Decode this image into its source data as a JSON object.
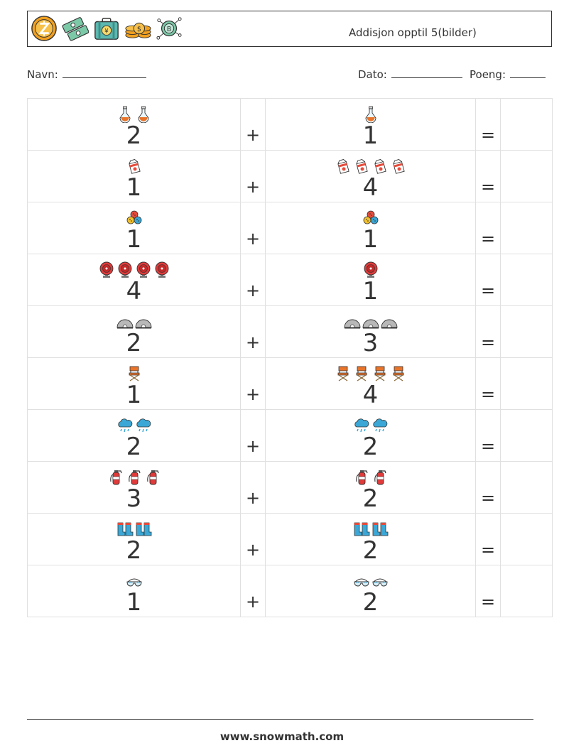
{
  "header": {
    "title": "Addisjon opptil 5(bilder)",
    "icons": [
      "zcash-coin-icon",
      "money-bills-icon",
      "yen-suitcase-icon",
      "coin-stack-icon",
      "bitcoin-network-icon"
    ]
  },
  "info": {
    "name_label": "Navn:",
    "date_label": "Dato:",
    "score_label": "Poeng:"
  },
  "operators": {
    "plus": "+",
    "equals": "="
  },
  "problems": [
    {
      "left": {
        "count": "2",
        "icon": "flask-icon"
      },
      "right": {
        "count": "1",
        "icon": "flask-icon"
      }
    },
    {
      "left": {
        "count": "1",
        "icon": "milk-carton-icon"
      },
      "right": {
        "count": "4",
        "icon": "milk-carton-icon"
      }
    },
    {
      "left": {
        "count": "1",
        "icon": "buttons-icon"
      },
      "right": {
        "count": "1",
        "icon": "buttons-icon"
      }
    },
    {
      "left": {
        "count": "4",
        "icon": "alarm-bell-icon"
      },
      "right": {
        "count": "1",
        "icon": "alarm-bell-icon"
      }
    },
    {
      "left": {
        "count": "2",
        "icon": "tent-icon"
      },
      "right": {
        "count": "3",
        "icon": "tent-icon"
      }
    },
    {
      "left": {
        "count": "1",
        "icon": "director-chair-icon"
      },
      "right": {
        "count": "4",
        "icon": "director-chair-icon"
      }
    },
    {
      "left": {
        "count": "2",
        "icon": "rain-cloud-icon"
      },
      "right": {
        "count": "2",
        "icon": "rain-cloud-icon"
      }
    },
    {
      "left": {
        "count": "3",
        "icon": "fire-extinguisher-icon"
      },
      "right": {
        "count": "2",
        "icon": "fire-extinguisher-icon"
      }
    },
    {
      "left": {
        "count": "2",
        "icon": "boots-icon"
      },
      "right": {
        "count": "2",
        "icon": "boots-icon"
      }
    },
    {
      "left": {
        "count": "1",
        "icon": "goggles-icon"
      },
      "right": {
        "count": "2",
        "icon": "goggles-icon"
      }
    }
  ],
  "footer": {
    "website": "www.snowmath.com"
  }
}
